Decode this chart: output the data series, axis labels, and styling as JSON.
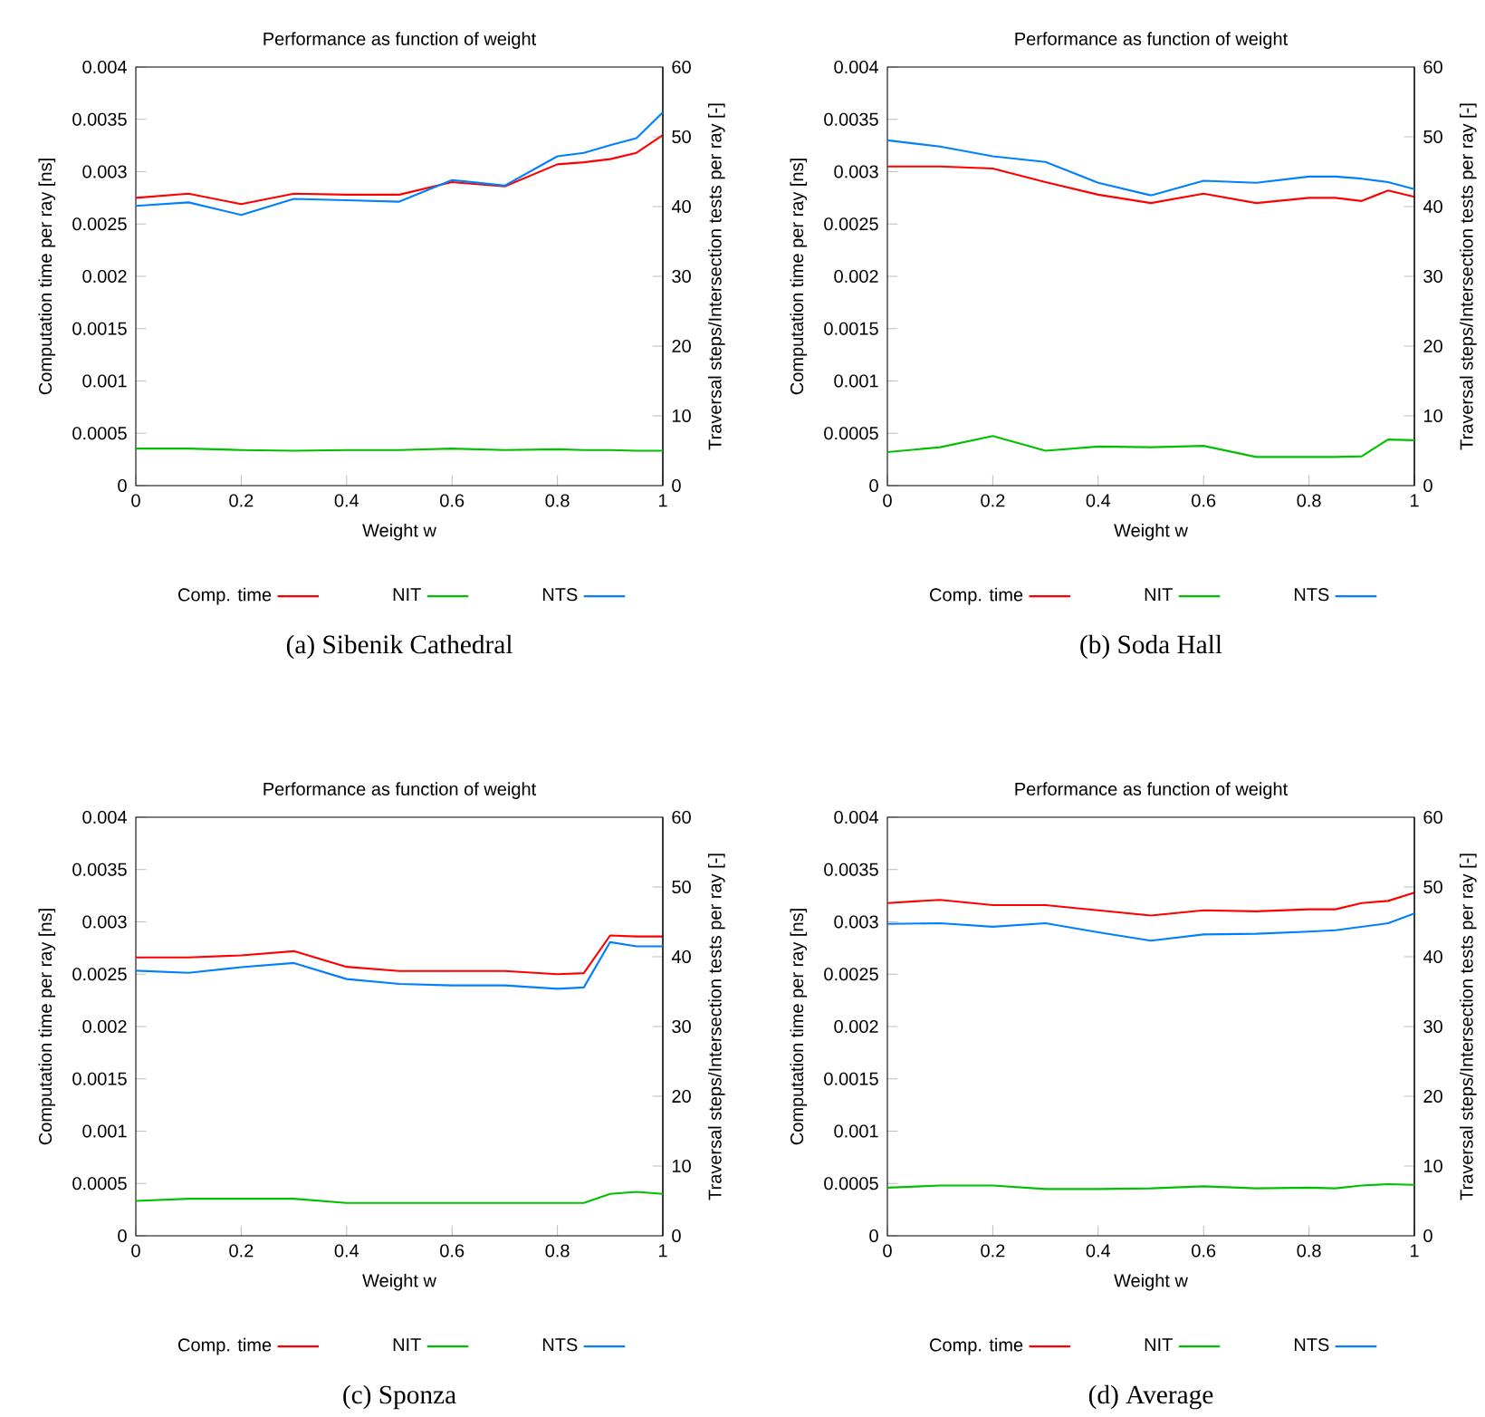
{
  "chart_data": [
    {
      "type": "line",
      "title": "Performance as function of weight",
      "xlabel": "Weight w",
      "ylabel": "Computation time per ray [ns]",
      "y2label": "Traversal steps/Intersection tests per ray [-]",
      "x": [
        0,
        0.1,
        0.2,
        0.3,
        0.4,
        0.5,
        0.6,
        0.7,
        0.8,
        0.85,
        0.9,
        0.95,
        1
      ],
      "xlim": [
        0,
        1
      ],
      "xticks": [
        0,
        0.2,
        0.4,
        0.6,
        0.8,
        1
      ],
      "ylim": [
        0,
        0.004
      ],
      "yticks": [
        0,
        0.0005,
        0.001,
        0.0015,
        0.002,
        0.0025,
        0.003,
        0.0035,
        0.004
      ],
      "y2lim": [
        0,
        60
      ],
      "y2ticks": [
        0,
        10,
        20,
        30,
        40,
        50,
        60
      ],
      "legend": "bottom",
      "annotations": [
        "(a) Sibenik Cathedral"
      ],
      "series": [
        {
          "name": "Comp. time",
          "color": "#ff0000",
          "values": [
            0.00275,
            0.00279,
            0.00269,
            0.00279,
            0.00278,
            0.00278,
            0.0029,
            0.00286,
            0.00307,
            0.00309,
            0.00312,
            0.00318,
            0.00335
          ]
        },
        {
          "name": "NIT",
          "color": "#00c000",
          "axis": "y2",
          "values": [
            5.3,
            5.3,
            5.1,
            5.0,
            5.1,
            5.1,
            5.3,
            5.1,
            5.2,
            5.1,
            5.1,
            5.0,
            5.0
          ]
        },
        {
          "name": "NTS",
          "color": "#0080ff",
          "axis": "y2",
          "values": [
            40.1,
            40.6,
            38.8,
            41.1,
            40.9,
            40.7,
            43.8,
            43.0,
            47.2,
            47.7,
            48.8,
            49.8,
            53.5
          ]
        }
      ]
    },
    {
      "type": "line",
      "title": "Performance as function of weight",
      "xlabel": "Weight w",
      "ylabel": "Computation time per ray [ns]",
      "y2label": "Traversal steps/Intersection tests per ray [-]",
      "x": [
        0,
        0.1,
        0.2,
        0.3,
        0.4,
        0.5,
        0.6,
        0.7,
        0.8,
        0.85,
        0.9,
        0.95,
        1
      ],
      "xlim": [
        0,
        1
      ],
      "xticks": [
        0,
        0.2,
        0.4,
        0.6,
        0.8,
        1
      ],
      "ylim": [
        0,
        0.004
      ],
      "yticks": [
        0,
        0.0005,
        0.001,
        0.0015,
        0.002,
        0.0025,
        0.003,
        0.0035,
        0.004
      ],
      "y2lim": [
        0,
        60
      ],
      "y2ticks": [
        0,
        10,
        20,
        30,
        40,
        50,
        60
      ],
      "legend": "bottom",
      "annotations": [
        "(b) Soda Hall"
      ],
      "series": [
        {
          "name": "Comp. time",
          "color": "#ff0000",
          "values": [
            0.00305,
            0.00305,
            0.00303,
            0.0029,
            0.00278,
            0.0027,
            0.00279,
            0.0027,
            0.00275,
            0.00275,
            0.00272,
            0.00282,
            0.00276
          ]
        },
        {
          "name": "NIT",
          "color": "#00c000",
          "axis": "y2",
          "values": [
            4.8,
            5.5,
            7.1,
            5.0,
            5.6,
            5.5,
            5.7,
            4.1,
            4.1,
            4.1,
            4.2,
            6.6,
            6.5
          ]
        },
        {
          "name": "NTS",
          "color": "#0080ff",
          "axis": "y2",
          "values": [
            49.5,
            48.6,
            47.2,
            46.4,
            43.4,
            41.6,
            43.7,
            43.4,
            44.3,
            44.3,
            44.0,
            43.5,
            42.5
          ]
        }
      ]
    },
    {
      "type": "line",
      "title": "Performance as function of weight",
      "xlabel": "Weight w",
      "ylabel": "Computation time per ray [ns]",
      "y2label": "Traversal steps/Intersection tests per ray [-]",
      "x": [
        0,
        0.1,
        0.2,
        0.3,
        0.4,
        0.5,
        0.6,
        0.7,
        0.8,
        0.85,
        0.9,
        0.95,
        1
      ],
      "xlim": [
        0,
        1
      ],
      "xticks": [
        0,
        0.2,
        0.4,
        0.6,
        0.8,
        1
      ],
      "ylim": [
        0,
        0.004
      ],
      "yticks": [
        0,
        0.0005,
        0.001,
        0.0015,
        0.002,
        0.0025,
        0.003,
        0.0035,
        0.004
      ],
      "y2lim": [
        0,
        60
      ],
      "y2ticks": [
        0,
        10,
        20,
        30,
        40,
        50,
        60
      ],
      "legend": "bottom",
      "annotations": [
        "(c) Sponza"
      ],
      "series": [
        {
          "name": "Comp. time",
          "color": "#ff0000",
          "values": [
            0.00266,
            0.00266,
            0.00268,
            0.00272,
            0.00257,
            0.00253,
            0.00253,
            0.00253,
            0.0025,
            0.00251,
            0.00287,
            0.00286,
            0.00286
          ]
        },
        {
          "name": "NIT",
          "color": "#00c000",
          "axis": "y2",
          "values": [
            5.0,
            5.3,
            5.3,
            5.3,
            4.7,
            4.7,
            4.7,
            4.7,
            4.7,
            4.7,
            6.0,
            6.3,
            6.0
          ]
        },
        {
          "name": "NTS",
          "color": "#0080ff",
          "axis": "y2",
          "values": [
            38.0,
            37.7,
            38.5,
            39.1,
            36.8,
            36.1,
            35.9,
            35.9,
            35.4,
            35.6,
            42.1,
            41.5,
            41.5
          ]
        }
      ]
    },
    {
      "type": "line",
      "title": "Performance as function of weight",
      "xlabel": "Weight w",
      "ylabel": "Computation time per ray [ns]",
      "y2label": "Traversal steps/Intersection tests per ray [-]",
      "x": [
        0,
        0.1,
        0.2,
        0.3,
        0.4,
        0.5,
        0.6,
        0.7,
        0.8,
        0.85,
        0.9,
        0.95,
        1
      ],
      "xlim": [
        0,
        1
      ],
      "xticks": [
        0,
        0.2,
        0.4,
        0.6,
        0.8,
        1
      ],
      "ylim": [
        0,
        0.004
      ],
      "yticks": [
        0,
        0.0005,
        0.001,
        0.0015,
        0.002,
        0.0025,
        0.003,
        0.0035,
        0.004
      ],
      "y2lim": [
        0,
        60
      ],
      "y2ticks": [
        0,
        10,
        20,
        30,
        40,
        50,
        60
      ],
      "legend": "bottom",
      "annotations": [
        "(d) Average"
      ],
      "series": [
        {
          "name": "Comp. time",
          "color": "#ff0000",
          "values": [
            0.00318,
            0.00321,
            0.00316,
            0.00316,
            0.00311,
            0.00306,
            0.00311,
            0.0031,
            0.00312,
            0.00312,
            0.00318,
            0.0032,
            0.00328
          ]
        },
        {
          "name": "NIT",
          "color": "#00c000",
          "axis": "y2",
          "values": [
            6.9,
            7.2,
            7.2,
            6.7,
            6.7,
            6.8,
            7.1,
            6.8,
            6.9,
            6.8,
            7.2,
            7.4,
            7.3
          ]
        },
        {
          "name": "NTS",
          "color": "#0080ff",
          "axis": "y2",
          "values": [
            44.7,
            44.8,
            44.3,
            44.8,
            43.5,
            42.3,
            43.2,
            43.3,
            43.6,
            43.8,
            44.3,
            44.8,
            46.2
          ]
        }
      ]
    }
  ]
}
